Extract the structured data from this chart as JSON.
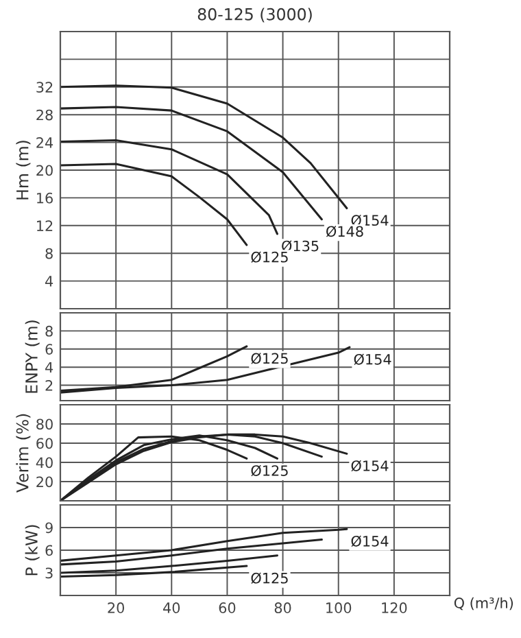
{
  "chart_data": [
    {
      "type": "line",
      "title": "80-125 (3000)",
      "ylabel": "Hm (m)",
      "xlim": [
        0,
        140
      ],
      "ylim": [
        0,
        40
      ],
      "xticks": [
        20,
        40,
        60,
        80,
        100,
        120
      ],
      "yticks": [
        4,
        8,
        12,
        16,
        20,
        24,
        28,
        32,
        {
          "value": 36,
          "label": null
        }
      ],
      "grid": true,
      "tick_labels": "y",
      "series": [
        {
          "name": "Ø154",
          "color": "#222222",
          "x": [
            0,
            20,
            40,
            60,
            80,
            90,
            103
          ],
          "values": [
            32,
            32.2,
            31.9,
            29.6,
            24.7,
            21,
            14.5
          ]
        },
        {
          "name": "Ø148",
          "color": "#222222",
          "x": [
            0,
            20,
            40,
            60,
            80,
            94
          ],
          "values": [
            28.9,
            29.1,
            28.6,
            25.6,
            19.7,
            12.9
          ]
        },
        {
          "name": "Ø135",
          "color": "#222222",
          "x": [
            0,
            20,
            40,
            60,
            75,
            78
          ],
          "values": [
            24.1,
            24.3,
            23,
            19.4,
            13.5,
            10.8
          ]
        },
        {
          "name": "Ø125",
          "color": "#222222",
          "x": [
            0,
            20,
            40,
            50,
            60,
            67
          ],
          "values": [
            20.7,
            20.9,
            19.1,
            16.1,
            12.9,
            9.2
          ]
        }
      ]
    },
    {
      "type": "line",
      "ylabel": "ENPY (m)",
      "xlim": [
        0,
        140
      ],
      "ylim": [
        0.3,
        10
      ],
      "xticks": [
        20,
        40,
        60,
        80,
        100,
        120
      ],
      "yticks": [
        2,
        4,
        6,
        8
      ],
      "grid": true,
      "tick_labels": "y",
      "series": [
        {
          "name": "Ø125",
          "color": "#222222",
          "x": [
            0,
            20,
            40,
            50,
            60,
            67
          ],
          "values": [
            1.4,
            1.8,
            2.6,
            3.9,
            5.2,
            6.3
          ]
        },
        {
          "name": "Ø154",
          "color": "#222222",
          "x": [
            0,
            20,
            40,
            60,
            80,
            100,
            104
          ],
          "values": [
            1.2,
            1.7,
            2.0,
            2.6,
            4.1,
            5.6,
            6.2
          ]
        }
      ]
    },
    {
      "type": "line",
      "ylabel": "Verim (%)",
      "xlim": [
        0,
        140
      ],
      "ylim": [
        0,
        100
      ],
      "xticks": [
        20,
        40,
        60,
        80,
        100,
        120
      ],
      "yticks": [
        20,
        40,
        60,
        80
      ],
      "grid": true,
      "tick_labels": "y",
      "series": [
        {
          "name": "Ø125",
          "color": "#222222",
          "x": [
            0,
            10,
            20,
            28,
            40,
            50,
            60,
            67
          ],
          "values": [
            0,
            24,
            46,
            66,
            67,
            63,
            53,
            44
          ]
        },
        {
          "color": "#222222",
          "x": [
            0,
            10,
            20,
            30,
            40,
            50,
            60,
            70,
            78
          ],
          "values": [
            0,
            22,
            42,
            58,
            64,
            68,
            63,
            55,
            44
          ]
        },
        {
          "color": "#222222",
          "x": [
            0,
            10,
            20,
            30,
            40,
            50,
            60,
            70,
            80,
            94
          ],
          "values": [
            0,
            20,
            40,
            54,
            62,
            67,
            69,
            67,
            60,
            46
          ]
        },
        {
          "name": "Ø154",
          "color": "#222222",
          "x": [
            0,
            10,
            20,
            30,
            40,
            50,
            60,
            70,
            80,
            90,
            103
          ],
          "values": [
            0,
            19,
            38,
            52,
            61,
            66,
            69,
            69,
            67,
            60,
            49
          ]
        }
      ]
    },
    {
      "type": "line",
      "ylabel": "P (kW)",
      "xlabel": "Q (m³/h)",
      "xlim": [
        0,
        140
      ],
      "ylim": [
        0,
        12
      ],
      "xticks": [
        20,
        40,
        60,
        80,
        100,
        120
      ],
      "yticks": [
        3,
        6,
        9
      ],
      "grid": true,
      "series": [
        {
          "name": "Ø154",
          "color": "#222222",
          "x": [
            0,
            20,
            40,
            60,
            80,
            100,
            103
          ],
          "values": [
            4.6,
            5.3,
            6.0,
            7.2,
            8.3,
            8.7,
            8.8
          ]
        },
        {
          "color": "#222222",
          "x": [
            0,
            20,
            40,
            60,
            80,
            94
          ],
          "values": [
            4.1,
            4.5,
            5.3,
            6.2,
            6.9,
            7.4
          ]
        },
        {
          "color": "#222222",
          "x": [
            0,
            20,
            40,
            60,
            78
          ],
          "values": [
            3.0,
            3.3,
            3.9,
            4.6,
            5.3
          ]
        },
        {
          "name": "Ø125",
          "color": "#222222",
          "x": [
            0,
            20,
            40,
            60,
            67
          ],
          "values": [
            2.5,
            2.7,
            3.1,
            3.7,
            3.9
          ]
        }
      ]
    }
  ]
}
